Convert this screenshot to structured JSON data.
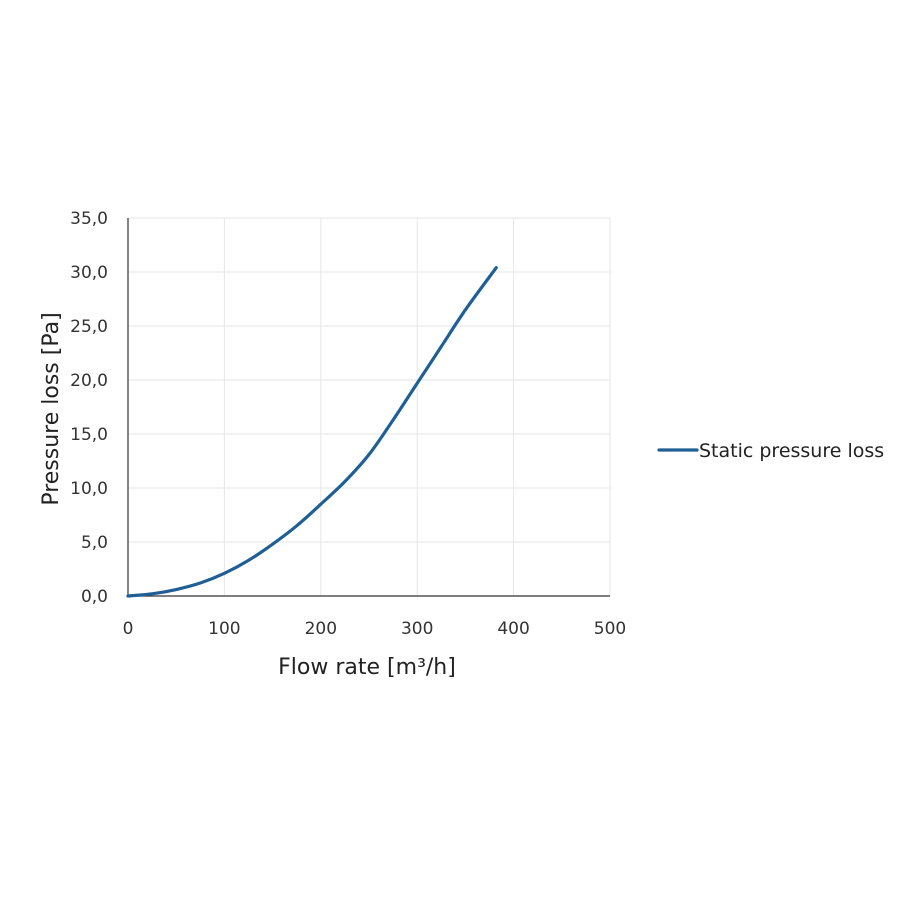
{
  "chart_data": {
    "type": "line",
    "title": "",
    "xlabel": "Flow rate [m³/h]",
    "ylabel": "Pressure loss [Pa]",
    "xlim": [
      0,
      500
    ],
    "ylim": [
      0,
      35
    ],
    "x_ticks": [
      0,
      100,
      200,
      300,
      400,
      500
    ],
    "y_ticks": [
      0,
      5,
      10,
      15,
      20,
      25,
      30,
      35
    ],
    "x_tick_labels": [
      "0",
      "100",
      "200",
      "300",
      "400",
      "500"
    ],
    "y_tick_labels": [
      "0,0",
      "5,0",
      "10,0",
      "15,0",
      "20,0",
      "25,0",
      "30,0",
      "35,0"
    ],
    "grid": true,
    "legend_position": "right",
    "series": [
      {
        "name": "Static pressure loss",
        "color": "#1f5f95",
        "x": [
          0,
          25,
          50,
          75,
          100,
          125,
          150,
          175,
          200,
          225,
          250,
          275,
          300,
          325,
          350,
          382
        ],
        "y": [
          0,
          0.2,
          0.6,
          1.2,
          2.1,
          3.3,
          4.8,
          6.5,
          8.5,
          10.6,
          13.1,
          16.3,
          19.7,
          23.1,
          26.5,
          30.4
        ]
      }
    ]
  }
}
